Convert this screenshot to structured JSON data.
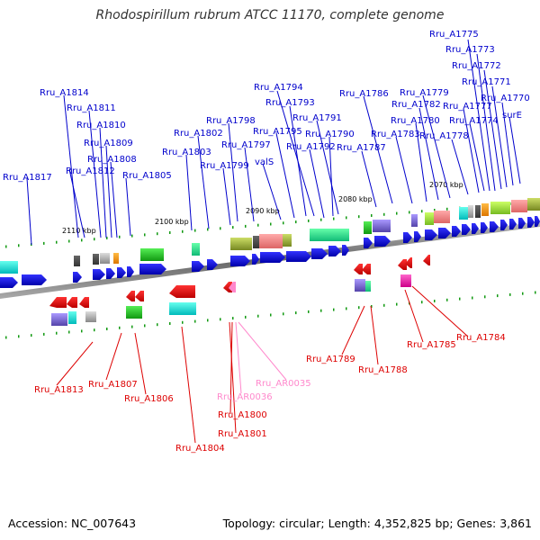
{
  "title": "Rhodospirillum rubrum ATCC 11170, complete genome",
  "footer": {
    "accession": "Accession: NC_007643",
    "summary": "Topology: circular; Length: 4,352,825 bp; Genes: 3,861"
  },
  "ticks": [
    "2070 kbp",
    "2080 kbp",
    "2090 kbp",
    "2100 kbp",
    "2110 kbp"
  ],
  "colors": {
    "forward": "#1010dd",
    "reverse": "#ee1111",
    "rna": "#ff88cc",
    "backbone": "#888888"
  },
  "labels_top": [
    "Rru_A1775",
    "Rru_A1773",
    "Rru_A1772",
    "Rru_A1771",
    "Rru_A1770",
    "surE",
    "Rru_A1774",
    "Rru_A1777",
    "Rru_A1778",
    "Rru_A1779",
    "Rru_A1782",
    "Rru_A1780",
    "Rru_A1783",
    "Rru_A1786",
    "Rru_A1787",
    "Rru_A1794",
    "Rru_A1793",
    "Rru_A1791",
    "Rru_A1790",
    "Rru_A1792",
    "Rru_A1795",
    "valS",
    "Rru_A1798",
    "Rru_A1797",
    "Rru_A1802",
    "Rru_A1799",
    "Rru_A1803",
    "Rru_A1814",
    "Rru_A1811",
    "Rru_A1810",
    "Rru_A1809",
    "Rru_A1808",
    "Rru_A1812",
    "Rru_A1805",
    "Rru_A1817"
  ],
  "labels_bottom": [
    "Rru_A1784",
    "Rru_A1785",
    "Rru_A1789",
    "Rru_A1788",
    "Rru_AR0035",
    "Rru_AR0036",
    "Rru_A1800",
    "Rru_A1801",
    "Rru_A1804",
    "Rru_A1806",
    "Rru_A1807",
    "Rru_A1813"
  ]
}
